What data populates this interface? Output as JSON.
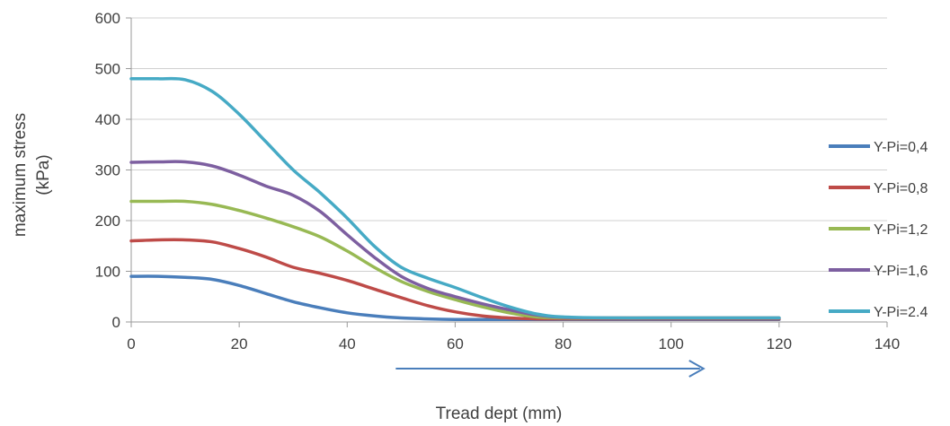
{
  "chart_data": {
    "type": "line",
    "title": "",
    "xlabel": "Tread dept   (mm)",
    "ylabel_lines": [
      "maximum stress",
      "(kPa)"
    ],
    "xlim": [
      0,
      140
    ],
    "ylim": [
      0,
      600
    ],
    "xticks": [
      0,
      20,
      40,
      60,
      80,
      100,
      120,
      140
    ],
    "yticks": [
      0,
      100,
      200,
      300,
      400,
      500,
      600
    ],
    "grid": "horizontal",
    "legend_position": "right",
    "series": [
      {
        "name": "Y-Pi=0,4",
        "color": "#4a7ebb",
        "x": [
          0,
          5,
          10,
          15,
          20,
          25,
          30,
          35,
          40,
          45,
          50,
          55,
          60,
          65,
          70,
          75,
          80,
          90,
          100,
          110,
          120
        ],
        "y": [
          90,
          90,
          88,
          84,
          72,
          56,
          40,
          28,
          18,
          12,
          8,
          6,
          5,
          5,
          5,
          5,
          5,
          5,
          5,
          5,
          5
        ]
      },
      {
        "name": "Y-Pi=0,8",
        "color": "#be4b48",
        "x": [
          0,
          5,
          10,
          15,
          20,
          25,
          30,
          35,
          40,
          45,
          50,
          55,
          60,
          65,
          70,
          75,
          80,
          90,
          100,
          110,
          120
        ],
        "y": [
          160,
          162,
          162,
          158,
          145,
          128,
          108,
          96,
          82,
          65,
          48,
          32,
          20,
          12,
          8,
          6,
          6,
          6,
          6,
          6,
          6
        ]
      },
      {
        "name": "Y-Pi=1,2",
        "color": "#98b954",
        "x": [
          0,
          5,
          10,
          15,
          20,
          25,
          30,
          35,
          40,
          45,
          50,
          55,
          60,
          65,
          70,
          75,
          80,
          90,
          100,
          110,
          120
        ],
        "y": [
          238,
          238,
          238,
          232,
          220,
          205,
          188,
          168,
          140,
          108,
          80,
          60,
          44,
          30,
          18,
          10,
          8,
          8,
          8,
          8,
          8
        ]
      },
      {
        "name": "Y-Pi=1,6",
        "color": "#7d5fa0",
        "x": [
          0,
          5,
          10,
          15,
          20,
          25,
          30,
          35,
          40,
          45,
          50,
          55,
          60,
          65,
          70,
          75,
          80,
          90,
          100,
          110,
          120
        ],
        "y": [
          315,
          316,
          316,
          308,
          290,
          268,
          250,
          218,
          172,
          128,
          90,
          66,
          50,
          36,
          24,
          14,
          9,
          8,
          8,
          8,
          8
        ]
      },
      {
        "name": "Y-Pi=2.4",
        "color": "#46aac5",
        "x": [
          0,
          5,
          10,
          15,
          20,
          25,
          30,
          35,
          40,
          45,
          50,
          55,
          60,
          65,
          70,
          75,
          80,
          90,
          100,
          110,
          120
        ],
        "y": [
          480,
          480,
          478,
          455,
          410,
          355,
          300,
          255,
          205,
          150,
          108,
          86,
          68,
          48,
          30,
          16,
          10,
          8,
          8,
          8,
          8
        ]
      }
    ],
    "annotation_arrow": {
      "x_start": 49,
      "x_end": 106,
      "color": "#4a7ebb"
    }
  }
}
